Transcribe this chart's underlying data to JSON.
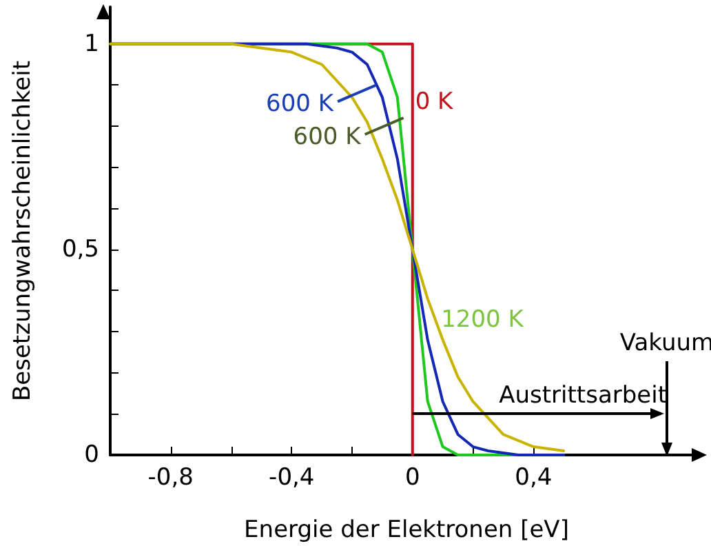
{
  "chart_data": {
    "type": "line",
    "xlabel": "Energie der Elektronen [eV]",
    "ylabel": "Besetzungwahrscheinlichkeit",
    "xlim": [
      -1,
      0.96
    ],
    "ylim": [
      0,
      1.09
    ],
    "xticks": [
      {
        "value": -0.8,
        "label": "-0,8"
      },
      {
        "value": -0.6,
        "label": null
      },
      {
        "value": -0.4,
        "label": "-0,4"
      },
      {
        "value": -0.2,
        "label": null
      },
      {
        "value": 0,
        "label": "0"
      },
      {
        "value": 0.2,
        "label": null
      },
      {
        "value": 0.4,
        "label": "0,4"
      }
    ],
    "yticks": [
      0,
      {
        "value": 0.1,
        "label": null
      },
      {
        "value": 0.2,
        "label": null
      },
      {
        "value": 0.3,
        "label": null
      },
      {
        "value": 0.4,
        "label": null
      },
      {
        "value": 0.5,
        "label": "0,5"
      },
      {
        "value": 0.6,
        "label": null
      },
      {
        "value": 0.7,
        "label": null
      },
      {
        "value": 0.8,
        "label": null
      },
      {
        "value": 0.9,
        "label": null
      },
      1
    ],
    "grid": false,
    "marker": "none",
    "line_style": "solid",
    "series": [
      {
        "color": "#c0141c",
        "x": [
          -1,
          0,
          0
        ],
        "values": [
          1,
          1,
          0
        ]
      },
      {
        "color": "#1ec81e",
        "x": [
          -1,
          -0.15,
          -0.1,
          -0.05,
          0,
          0.05,
          0.1,
          0.15,
          0.2,
          0.5
        ],
        "values": [
          1,
          1,
          0.98,
          0.87,
          0.5,
          0.13,
          0.02,
          0,
          0,
          0
        ]
      },
      {
        "color": "#1428b4",
        "x": [
          -1,
          -0.35,
          -0.25,
          -0.2,
          -0.15,
          -0.1,
          -0.05,
          0,
          0.05,
          0.1,
          0.15,
          0.2,
          0.25,
          0.35,
          0.5
        ],
        "values": [
          1,
          1,
          0.99,
          0.98,
          0.95,
          0.87,
          0.72,
          0.5,
          0.28,
          0.13,
          0.05,
          0.02,
          0.01,
          0,
          0
        ]
      },
      {
        "color": "#c8b400",
        "x": [
          -1,
          -0.6,
          -0.4,
          -0.3,
          -0.2,
          -0.15,
          -0.1,
          -0.05,
          0,
          0.05,
          0.1,
          0.15,
          0.2,
          0.3,
          0.4,
          0.5
        ],
        "values": [
          1,
          1,
          0.98,
          0.95,
          0.87,
          0.81,
          0.72,
          0.62,
          0.5,
          0.38,
          0.28,
          0.19,
          0.13,
          0.05,
          0.02,
          0.01
        ]
      }
    ],
    "annotations": [
      {
        "text": "600 K",
        "x": -0.12,
        "y": 0.9
      },
      {
        "text": "600 K",
        "x": -0.03,
        "y": 0.82
      },
      "0 K",
      "1200 K",
      "Austrittsarbeit",
      "Vakuum"
    ]
  }
}
